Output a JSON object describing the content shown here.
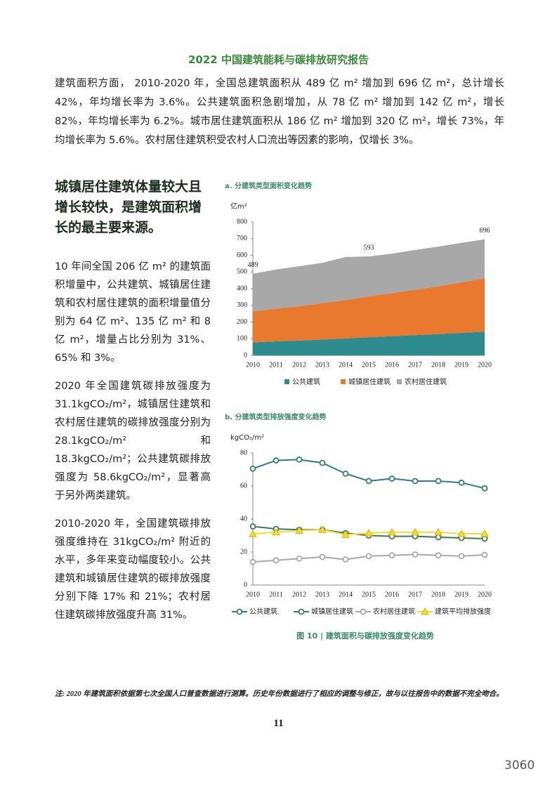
{
  "header": {
    "title": "2022 中国建筑能耗与碳排放研究报告"
  },
  "intro": "建筑面积方面， 2010-2020 年，全国总建筑面积从 489 亿 m² 增加到 696 亿 m²，总计增长 42%，年均增长率为 3.6%。公共建筑面积急剧增加，从 78 亿 m² 增加到 142 亿 m²，增长 82%，年均增长率为 6.2%。城市居住建筑面积从 186 亿 m² 增加到 320 亿 m²，增长 73%，年均增长率为 5.6%。农村居住建筑积受农村人口流出等因素的影响，仅增长 3%。",
  "sidebar": {
    "heading": "城镇居住建筑体量较大且增长较快，是建筑面积增长的最主要来源。",
    "paragraphs": [
      "10 年间全国 206 亿 m² 的建筑面积增量中，公共建筑、城镇居住建筑和农村居住建筑的面积增量值分别为 64 亿 m²、135 亿 m² 和 8 亿 m²，增量占比分别为 31%、65% 和 3%。",
      "2020 年全国建筑碳排放强度为 31.1kgCO₂/m²，城镇居住建筑和农村居住建筑的碳排放强度分别为 28.1kgCO₂/m² 和 18.3kgCO₂/m²；公共建筑碳排放强度为 58.6kgCO₂/m²，显著高于另外两类建筑。",
      "2010-2020 年，全国建筑碳排放强度维持在 31kgCO₂/m² 附近的水平，多年来变动幅度较小。公共建筑和城镇居住建筑的碳排放强度分别下降 17% 和 21%；农村居住建筑碳排放强度升高 31%。"
    ]
  },
  "chart_data": [
    {
      "type": "area",
      "stacked": true,
      "title": "a. 分建筑类型面积变化趋势",
      "y_label": "亿m²",
      "categories": [
        "2010",
        "2011",
        "2012",
        "2013",
        "2014",
        "2015",
        "2016",
        "2017",
        "2018",
        "2019",
        "2020"
      ],
      "series": [
        {
          "name": "公共建筑",
          "color": "#2e8b8e",
          "values": [
            78,
            84,
            89,
            95,
            101,
            109,
            115,
            121,
            128,
            135,
            142
          ]
        },
        {
          "name": "城镇居住建筑",
          "color": "#e8792f",
          "values": [
            186,
            196,
            206,
            218,
            230,
            245,
            258,
            272,
            287,
            303,
            320
          ]
        },
        {
          "name": "农村居住建筑",
          "color": "#a8a8a8",
          "values": [
            225,
            235,
            240,
            242,
            259,
            239,
            237,
            239,
            237,
            237,
            234
          ]
        }
      ],
      "annotations": [
        {
          "category": "2010",
          "value": 489
        },
        {
          "category": "2015",
          "value": 593
        },
        {
          "category": "2020",
          "value": 696
        }
      ],
      "ylim": [
        0,
        800
      ],
      "yticks": [
        0,
        100,
        200,
        300,
        400,
        500,
        600,
        700,
        800
      ],
      "grid": false
    },
    {
      "type": "line",
      "title": "b. 分建筑类型排放强度变化趋势",
      "y_label": "kgCO₂/m²",
      "categories": [
        "2010",
        "2011",
        "2012",
        "2013",
        "2014",
        "2015",
        "2016",
        "2017",
        "2018",
        "2019",
        "2020"
      ],
      "series": [
        {
          "name": "公共建筑",
          "color": "#2f7f78",
          "marker": "circle",
          "values": [
            70.5,
            75.5,
            76,
            74,
            67.5,
            63,
            64.5,
            63,
            63,
            62,
            58.6
          ]
        },
        {
          "name": "城镇居住建筑",
          "color": "#3d7a4e",
          "marker": "circle",
          "values": [
            35.5,
            34,
            33.5,
            33.5,
            31.5,
            30,
            29.5,
            29.5,
            29,
            28.5,
            28.1
          ]
        },
        {
          "name": "农村居住建筑",
          "color": "#a8a8a8",
          "marker": "circle",
          "values": [
            14,
            15,
            16,
            17,
            15.5,
            17.5,
            18,
            18.5,
            18,
            17.5,
            18.3
          ]
        },
        {
          "name": "建筑平均排放强度",
          "color": "#f0dc3c",
          "marker": "triangle",
          "values": [
            31,
            32,
            33,
            33.5,
            30.5,
            31.5,
            32,
            32,
            32,
            31,
            31.1
          ]
        }
      ],
      "ylim": [
        0,
        80
      ],
      "yticks": [
        0,
        20,
        40,
        60,
        80
      ],
      "grid": false
    }
  ],
  "caption": "图 10 | 建筑面积与碳排放强度变化趋势",
  "footnote": "注: 2020 年建筑面积依据第七次全国人口普查数据进行测算。历史年份数据进行了相应的调整与修正，故与以往报告中的数据不完全吻合。",
  "page_number": "11",
  "watermark": "3060"
}
